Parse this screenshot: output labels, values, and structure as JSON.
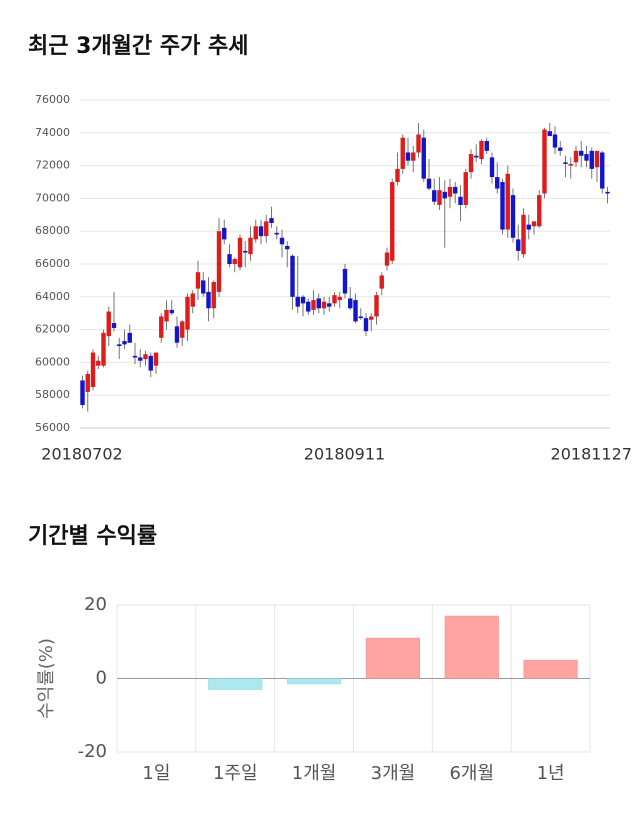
{
  "chart_data": [
    {
      "type": "candlestick",
      "title": "최근 3개월간 주가 추세",
      "up_color": "#dd1c1c",
      "down_color": "#1515c8",
      "grid": true,
      "ylim": [
        56000,
        76000
      ],
      "yticks": [
        56000,
        58000,
        60000,
        62000,
        64000,
        66000,
        68000,
        70000,
        72000,
        74000,
        76000
      ],
      "categories": [
        "20180702",
        null,
        null,
        null,
        null,
        null,
        null,
        null,
        null,
        null,
        null,
        null,
        null,
        null,
        null,
        null,
        null,
        null,
        null,
        null,
        null,
        null,
        null,
        null,
        null,
        null,
        null,
        null,
        null,
        null,
        null,
        null,
        null,
        null,
        null,
        null,
        null,
        null,
        null,
        null,
        null,
        null,
        null,
        null,
        null,
        null,
        null,
        null,
        null,
        null,
        "20180911",
        null,
        null,
        null,
        null,
        null,
        null,
        null,
        null,
        null,
        null,
        null,
        null,
        null,
        null,
        null,
        null,
        null,
        null,
        null,
        null,
        null,
        null,
        null,
        null,
        null,
        null,
        null,
        null,
        null,
        null,
        null,
        null,
        null,
        null,
        null,
        null,
        null,
        null,
        null,
        null,
        null,
        null,
        null,
        null,
        null,
        null,
        "20181127",
        null,
        null,
        null
      ],
      "ohlc": [
        [
          58900,
          59200,
          57200,
          57400
        ],
        [
          58200,
          59500,
          57000,
          59300
        ],
        [
          58500,
          60800,
          58300,
          60600
        ],
        [
          59800,
          60400,
          59600,
          60100
        ],
        [
          59800,
          62000,
          59700,
          61800
        ],
        [
          61600,
          63400,
          61000,
          63100
        ],
        [
          62400,
          64300,
          61900,
          62100
        ],
        [
          61100,
          61500,
          60200,
          61000
        ],
        [
          61300,
          62000,
          60800,
          61100
        ],
        [
          61800,
          62300,
          61200,
          61200
        ],
        [
          60400,
          61200,
          59900,
          60300
        ],
        [
          60300,
          60800,
          59700,
          60100
        ],
        [
          60200,
          60700,
          59800,
          60500
        ],
        [
          60400,
          60600,
          59100,
          59500
        ],
        [
          59800,
          60500,
          59300,
          60600
        ],
        [
          61500,
          63000,
          61200,
          62800
        ],
        [
          62500,
          63800,
          62000,
          63200
        ],
        [
          63200,
          63800,
          62900,
          63000
        ],
        [
          62200,
          62800,
          60900,
          61200
        ],
        [
          61500,
          62600,
          61000,
          62500
        ],
        [
          62000,
          64200,
          61300,
          64000
        ],
        [
          63400,
          64400,
          63000,
          64200
        ],
        [
          64500,
          66200,
          63800,
          65500
        ],
        [
          65000,
          65500,
          64000,
          64200
        ],
        [
          64300,
          65200,
          62500,
          63300
        ],
        [
          63300,
          65000,
          62700,
          64900
        ],
        [
          64300,
          68800,
          64000,
          68000
        ],
        [
          68200,
          68700,
          67200,
          67500
        ],
        [
          66600,
          67200,
          65800,
          66000
        ],
        [
          66000,
          66400,
          65500,
          66300
        ],
        [
          65800,
          67800,
          65600,
          67600
        ],
        [
          66800,
          67400,
          65800,
          66700
        ],
        [
          66600,
          68300,
          66200,
          67600
        ],
        [
          67500,
          68700,
          67300,
          68300
        ],
        [
          68300,
          68700,
          67200,
          67700
        ],
        [
          67700,
          69000,
          67300,
          68600
        ],
        [
          68800,
          69500,
          68200,
          68500
        ],
        [
          67900,
          68300,
          67500,
          67800
        ],
        [
          67600,
          68100,
          66400,
          67200
        ],
        [
          67100,
          67400,
          65800,
          66900
        ],
        [
          66500,
          66600,
          63200,
          64000
        ],
        [
          64000,
          66500,
          63000,
          63400
        ],
        [
          64000,
          64100,
          62800,
          63600
        ],
        [
          63700,
          63900,
          62900,
          63100
        ],
        [
          63200,
          64400,
          62900,
          63800
        ],
        [
          63900,
          64200,
          63000,
          63300
        ],
        [
          63300,
          64000,
          62900,
          63700
        ],
        [
          63600,
          64000,
          63100,
          63400
        ],
        [
          63600,
          64300,
          63400,
          64100
        ],
        [
          63800,
          64300,
          63300,
          64000
        ],
        [
          65700,
          66000,
          63900,
          64200
        ],
        [
          63900,
          64600,
          63200,
          63300
        ],
        [
          63800,
          64200,
          62400,
          62500
        ],
        [
          62800,
          63300,
          62600,
          62700
        ],
        [
          62700,
          63000,
          61600,
          61900
        ],
        [
          62600,
          63000,
          61900,
          62800
        ],
        [
          62800,
          64300,
          62300,
          64100
        ],
        [
          64500,
          65500,
          64100,
          65300
        ],
        [
          65900,
          67000,
          65600,
          66700
        ],
        [
          66200,
          71200,
          66000,
          71000
        ],
        [
          71000,
          72800,
          70800,
          71800
        ],
        [
          71800,
          73900,
          71500,
          73700
        ],
        [
          72800,
          73700,
          72000,
          72300
        ],
        [
          72300,
          73200,
          71600,
          72800
        ],
        [
          72800,
          74600,
          72500,
          73900
        ],
        [
          73700,
          74200,
          71000,
          71200
        ],
        [
          71200,
          72400,
          70500,
          70600
        ],
        [
          70500,
          71200,
          69600,
          69800
        ],
        [
          69600,
          71300,
          69300,
          70500
        ],
        [
          70400,
          71100,
          67000,
          70000
        ],
        [
          70100,
          71200,
          69400,
          70700
        ],
        [
          70700,
          71000,
          69700,
          70300
        ],
        [
          70100,
          70800,
          68600,
          69600
        ],
        [
          69600,
          71800,
          69400,
          71600
        ],
        [
          71600,
          73000,
          71200,
          72700
        ],
        [
          72600,
          73300,
          72200,
          72500
        ],
        [
          72400,
          73600,
          72100,
          73500
        ],
        [
          73500,
          73700,
          72700,
          72900
        ],
        [
          72500,
          72800,
          70900,
          71300
        ],
        [
          71300,
          72200,
          70300,
          70600
        ],
        [
          71000,
          71200,
          67800,
          68100
        ],
        [
          68100,
          72000,
          67600,
          71500
        ],
        [
          70200,
          70600,
          67300,
          67600
        ],
        [
          67500,
          68400,
          66200,
          66800
        ],
        [
          66600,
          69400,
          66400,
          69000
        ],
        [
          68400,
          69000,
          67500,
          68100
        ],
        [
          68300,
          68600,
          67800,
          68600
        ],
        [
          68300,
          70500,
          68200,
          70200
        ],
        [
          70300,
          74300,
          70000,
          74200
        ],
        [
          74100,
          74600,
          73800,
          73800
        ],
        [
          73900,
          74400,
          72700,
          73100
        ],
        [
          73100,
          73500,
          72600,
          72900
        ],
        [
          72200,
          72600,
          71300,
          72100
        ],
        [
          72000,
          72500,
          71200,
          72100
        ],
        [
          72200,
          73200,
          71900,
          72900
        ],
        [
          72900,
          73500,
          71900,
          72600
        ],
        [
          72700,
          73200,
          71900,
          72300
        ],
        [
          72900,
          73100,
          71200,
          71800
        ],
        [
          71900,
          72800,
          71000,
          72900
        ],
        [
          72800,
          72900,
          70300,
          70600
        ],
        [
          70400,
          70700,
          69700,
          70300
        ]
      ]
    },
    {
      "type": "bar",
      "title": "기간별 수익률",
      "ylabel": "수익률(%)",
      "categories": [
        "1일",
        "1주일",
        "1개월",
        "3개월",
        "6개월",
        "1년"
      ],
      "values": [
        0,
        -3,
        -1.5,
        11,
        17,
        5
      ],
      "positive_color": "#ffa3a3",
      "negative_color": "#aee8ef",
      "grid": true,
      "ylim": [
        -20,
        20
      ],
      "yticks": [
        -20,
        0,
        20
      ]
    }
  ]
}
